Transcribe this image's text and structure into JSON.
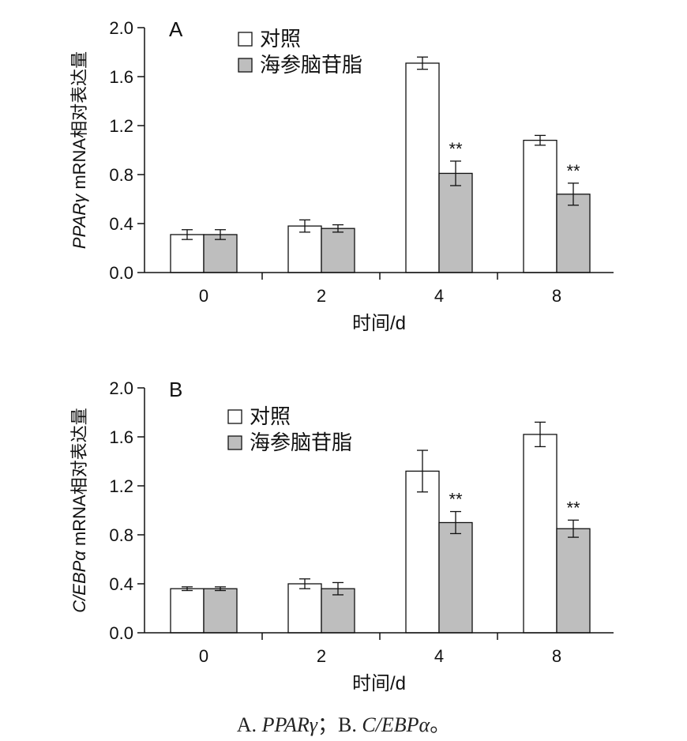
{
  "chart_data": [
    {
      "type": "bar",
      "panel_label": "A",
      "ylabel_italic": "PPARγ",
      "ylabel_rest": " mRNA相对表达量",
      "xlabel": "时间/d",
      "categories": [
        "0",
        "2",
        "4",
        "8"
      ],
      "ylim": [
        0,
        2.0
      ],
      "yticks": [
        "0.0",
        "0.4",
        "0.8",
        "1.2",
        "1.6",
        "2.0"
      ],
      "grid": false,
      "legend_position": "top-left",
      "series": [
        {
          "name": "对照",
          "color": "#ffffff",
          "values": [
            0.31,
            0.38,
            1.71,
            1.08
          ],
          "errors": [
            0.04,
            0.05,
            0.05,
            0.04
          ]
        },
        {
          "name": "海参脑苷脂",
          "color": "#bebebe",
          "values": [
            0.31,
            0.36,
            0.81,
            0.64
          ],
          "errors": [
            0.04,
            0.03,
            0.1,
            0.09
          ]
        }
      ],
      "annotations": [
        "",
        "",
        "**",
        "**"
      ]
    },
    {
      "type": "bar",
      "panel_label": "B",
      "ylabel_italic": "C/EBPα",
      "ylabel_rest": " mRNA相对表达量",
      "xlabel": "时间/d",
      "categories": [
        "0",
        "2",
        "4",
        "8"
      ],
      "ylim": [
        0,
        2.0
      ],
      "yticks": [
        "0.0",
        "0.4",
        "0.8",
        "1.2",
        "1.6",
        "2.0"
      ],
      "grid": false,
      "legend_position": "top-left",
      "series": [
        {
          "name": "对照",
          "color": "#ffffff",
          "values": [
            0.36,
            0.4,
            1.32,
            1.62
          ],
          "errors": [
            0.015,
            0.04,
            0.17,
            0.1
          ]
        },
        {
          "name": "海参脑苷脂",
          "color": "#bebebe",
          "values": [
            0.36,
            0.36,
            0.9,
            0.85
          ],
          "errors": [
            0.015,
            0.05,
            0.09,
            0.07
          ]
        }
      ],
      "annotations": [
        "",
        "",
        "**",
        "**"
      ]
    }
  ],
  "caption": {
    "a_prefix": "A. ",
    "a_gene": "PPARγ",
    "sep": "；",
    "b_prefix": "B. ",
    "b_gene": "C/EBPα",
    "end": "。"
  }
}
